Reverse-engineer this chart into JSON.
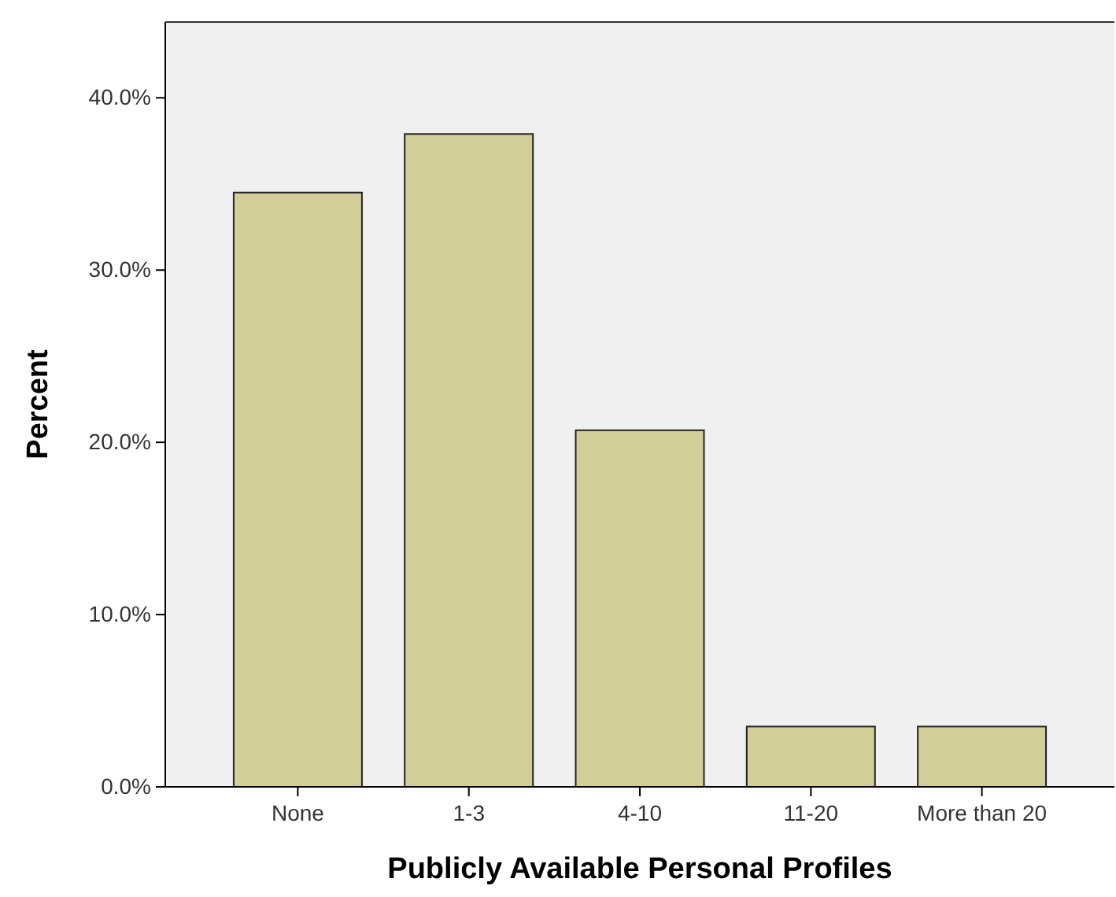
{
  "chart_data": {
    "type": "bar",
    "xlabel": "Publicly Available Personal Profiles",
    "ylabel": "Percent",
    "categories": [
      "None",
      "1-3",
      "4-10",
      "11-20",
      "More than 20"
    ],
    "values": [
      34.5,
      37.9,
      20.7,
      3.5,
      3.5
    ],
    "color": "#d3ce97",
    "ylim": [
      0,
      44.4
    ],
    "yticks": [
      {
        "value": 0,
        "label": "0.0%"
      },
      {
        "value": 10,
        "label": "10.0%"
      },
      {
        "value": 20,
        "label": "20.0%"
      },
      {
        "value": 30,
        "label": "30.0%"
      },
      {
        "value": 40,
        "label": "40.0%"
      }
    ],
    "grid": false
  }
}
